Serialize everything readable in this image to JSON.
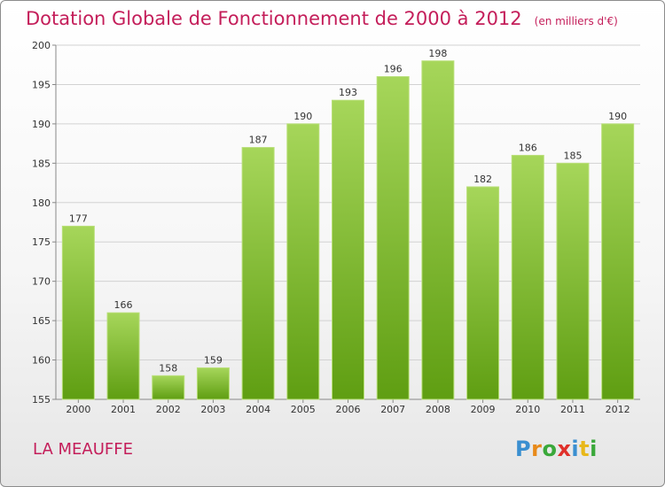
{
  "title": "Dotation Globale de Fonctionnement de 2000 à 2012",
  "unit": "(en milliers d'€)",
  "commune": "LA MEAUFFE",
  "logo": {
    "letters": [
      "P",
      "r",
      "o",
      "x",
      "i",
      "t",
      "i"
    ],
    "colors": [
      "#3a8fd0",
      "#e88a1a",
      "#3aa83a",
      "#e0302a",
      "#3a8fd0",
      "#e8b81a",
      "#3aa83a"
    ]
  },
  "colors": {
    "bar_top": "#a6d65a",
    "bar_bottom": "#5f9e12",
    "title": "#c41e5a"
  },
  "chart_data": {
    "type": "bar",
    "title": "Dotation Globale de Fonctionnement de 2000 à 2012",
    "xlabel": "",
    "ylabel": "",
    "categories": [
      "2000",
      "2001",
      "2002",
      "2003",
      "2004",
      "2005",
      "2006",
      "2007",
      "2008",
      "2009",
      "2010",
      "2011",
      "2012"
    ],
    "values": [
      177,
      166,
      158,
      159,
      187,
      190,
      193,
      196,
      198,
      182,
      186,
      185,
      190
    ],
    "ylim": [
      155,
      200
    ],
    "yticks": [
      155,
      160,
      165,
      170,
      175,
      180,
      185,
      190,
      195,
      200
    ],
    "grid": true,
    "legend": "none"
  }
}
